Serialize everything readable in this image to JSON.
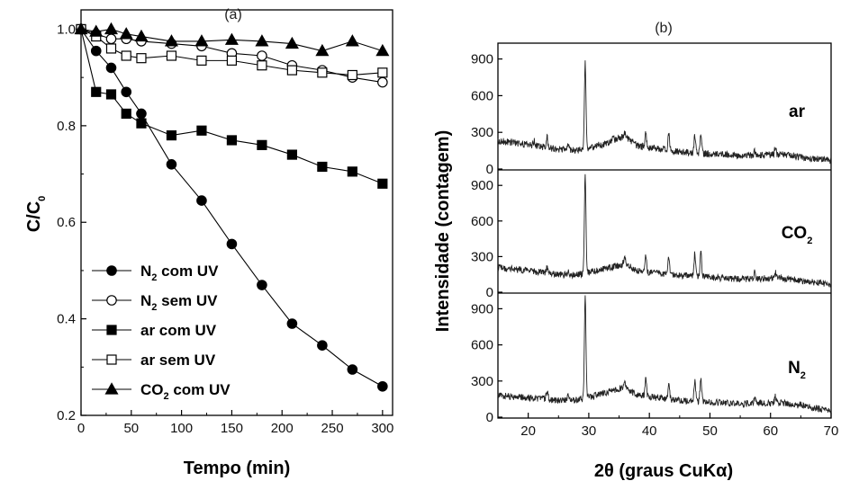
{
  "chart_data": [
    {
      "type": "line",
      "panel_label": "(a)",
      "xlabel": "Tempo (min)",
      "ylabel": {
        "main": "C/C",
        "sub": "0"
      },
      "xlim": [
        0,
        310
      ],
      "ylim": [
        0.2,
        1.04
      ],
      "xticks": [
        "0",
        "50",
        "100",
        "150",
        "200",
        "250",
        "300"
      ],
      "yticks": [
        "0.2",
        "0.4",
        "0.6",
        "0.8",
        "1.0"
      ],
      "series": [
        {
          "name": {
            "pre": "N",
            "sub": "2",
            "post": " com UV"
          },
          "marker": "circle-filled",
          "x": [
            0,
            15,
            30,
            45,
            60,
            90,
            120,
            150,
            180,
            210,
            240,
            270,
            300
          ],
          "y": [
            1.0,
            0.955,
            0.92,
            0.87,
            0.825,
            0.72,
            0.645,
            0.555,
            0.47,
            0.39,
            0.345,
            0.295,
            0.26
          ]
        },
        {
          "name": {
            "pre": "N",
            "sub": "2",
            "post": " sem UV"
          },
          "marker": "circle-open",
          "x": [
            0,
            15,
            30,
            45,
            60,
            90,
            120,
            150,
            180,
            210,
            240,
            270,
            300
          ],
          "y": [
            1.0,
            0.99,
            0.98,
            0.98,
            0.975,
            0.97,
            0.965,
            0.95,
            0.945,
            0.925,
            0.915,
            0.9,
            0.89
          ]
        },
        {
          "name": {
            "pre": "ar com UV",
            "sub": "",
            "post": ""
          },
          "marker": "square-filled",
          "x": [
            0,
            15,
            30,
            45,
            60,
            90,
            120,
            150,
            180,
            210,
            240,
            270,
            300
          ],
          "y": [
            1.0,
            0.87,
            0.865,
            0.825,
            0.805,
            0.78,
            0.79,
            0.77,
            0.76,
            0.74,
            0.715,
            0.705,
            0.68
          ]
        },
        {
          "name": {
            "pre": "ar sem UV",
            "sub": "",
            "post": ""
          },
          "marker": "square-open",
          "x": [
            0,
            15,
            30,
            45,
            60,
            90,
            120,
            150,
            180,
            210,
            240,
            270,
            300
          ],
          "y": [
            1.0,
            0.985,
            0.96,
            0.945,
            0.94,
            0.945,
            0.935,
            0.935,
            0.925,
            0.915,
            0.91,
            0.905,
            0.91
          ]
        },
        {
          "name": {
            "pre": "CO",
            "sub": "2",
            "post": " com UV"
          },
          "marker": "triangle-filled",
          "x": [
            0,
            15,
            30,
            45,
            60,
            90,
            120,
            150,
            180,
            210,
            240,
            270,
            300
          ],
          "y": [
            1.0,
            0.995,
            1.0,
            0.99,
            0.985,
            0.975,
            0.975,
            0.978,
            0.975,
            0.97,
            0.955,
            0.975,
            0.955
          ]
        }
      ]
    },
    {
      "type": "line",
      "panel_label": "(b)",
      "xlabel": {
        "pre": "2θ (graus CuK",
        "greek": "α",
        "post": ")"
      },
      "ylabel": "Intensidade (contagem)",
      "xlim": [
        15,
        70
      ],
      "ylim_each": [
        0,
        1000
      ],
      "xticks": [
        "20",
        "30",
        "40",
        "50",
        "60",
        "70"
      ],
      "yticks": [
        "0",
        "300",
        "600",
        "900"
      ],
      "subplots": [
        {
          "label": {
            "pre": "ar",
            "sub": ""
          },
          "baseline": [
            [
              15,
              230
            ],
            [
              20,
              200
            ],
            [
              25,
              160
            ],
            [
              28,
              150
            ],
            [
              32,
              190
            ],
            [
              36,
              270
            ],
            [
              38,
              190
            ],
            [
              45,
              140
            ],
            [
              55,
              110
            ],
            [
              62,
              120
            ],
            [
              70,
              65
            ]
          ],
          "peaks": [
            [
              21,
              230
            ],
            [
              23.1,
              260
            ],
            [
              26.6,
              210
            ],
            [
              29.4,
              870
            ],
            [
              31.5,
              210
            ],
            [
              34,
              260
            ],
            [
              36,
              300
            ],
            [
              39.4,
              300
            ],
            [
              43.2,
              290
            ],
            [
              47.5,
              270
            ],
            [
              48.5,
              270
            ],
            [
              57.4,
              150
            ],
            [
              60.8,
              180
            ]
          ]
        },
        {
          "label": {
            "pre": "CO",
            "sub": "2"
          },
          "baseline": [
            [
              15,
              210
            ],
            [
              20,
              180
            ],
            [
              25,
              150
            ],
            [
              28,
              145
            ],
            [
              32,
              190
            ],
            [
              36,
              240
            ],
            [
              38,
              180
            ],
            [
              45,
              140
            ],
            [
              55,
              110
            ],
            [
              62,
              120
            ],
            [
              70,
              65
            ]
          ],
          "peaks": [
            [
              23.1,
              210
            ],
            [
              26.6,
              180
            ],
            [
              29.4,
              980
            ],
            [
              35.9,
              310
            ],
            [
              39.4,
              310
            ],
            [
              43.2,
              300
            ],
            [
              47.5,
              330
            ],
            [
              48.5,
              350
            ],
            [
              57.4,
              170
            ],
            [
              60.8,
              170
            ],
            [
              65,
              110
            ]
          ]
        },
        {
          "label": {
            "pre": "N",
            "sub": "2"
          },
          "baseline": [
            [
              15,
              180
            ],
            [
              20,
              160
            ],
            [
              25,
              140
            ],
            [
              28,
              140
            ],
            [
              32,
              190
            ],
            [
              36,
              250
            ],
            [
              38,
              180
            ],
            [
              45,
              140
            ],
            [
              55,
              110
            ],
            [
              62,
              120
            ],
            [
              70,
              55
            ]
          ],
          "peaks": [
            [
              23.1,
              230
            ],
            [
              26.6,
              200
            ],
            [
              29.4,
              1000
            ],
            [
              35.9,
              300
            ],
            [
              39.4,
              310
            ],
            [
              43.2,
              270
            ],
            [
              47.5,
              310
            ],
            [
              48.5,
              330
            ],
            [
              57.4,
              160
            ],
            [
              60.8,
              170
            ],
            [
              65,
              110
            ]
          ]
        }
      ]
    }
  ]
}
